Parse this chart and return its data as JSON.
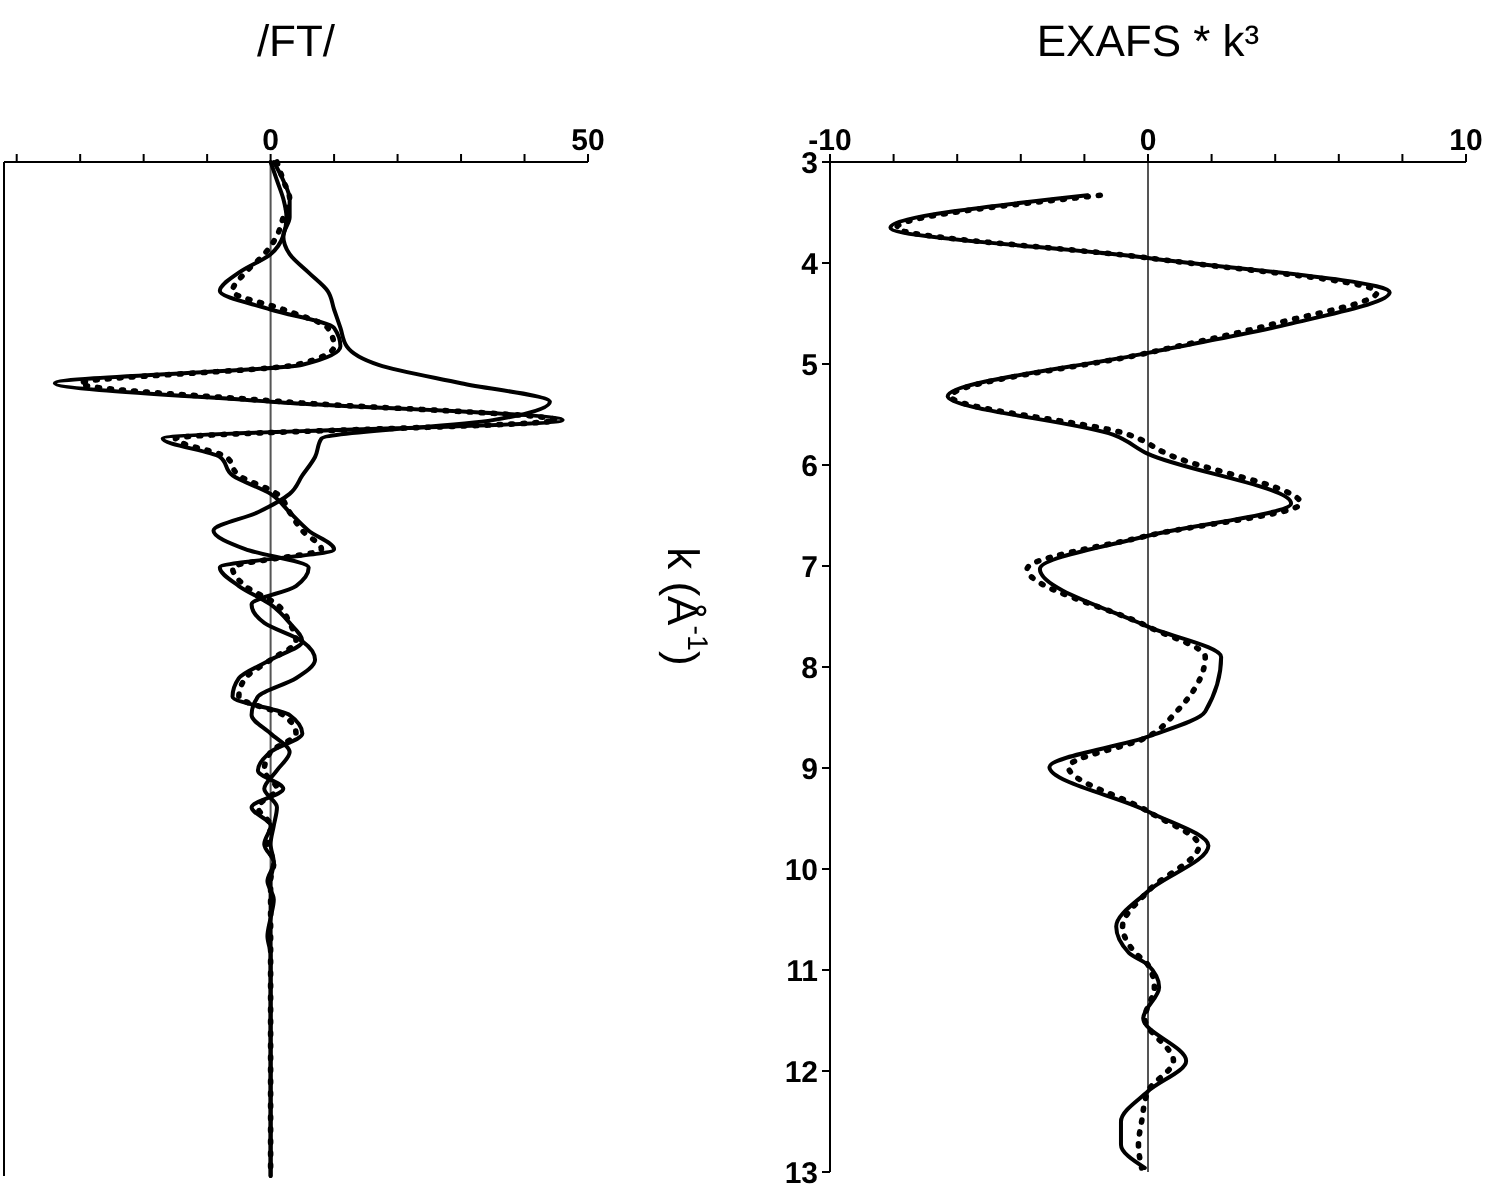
{
  "chart_data": [
    {
      "type": "line",
      "xlabel": "EXAFS * k³",
      "ylabel": "k (Å$^{-1}$)",
      "ylim": [
        13,
        3
      ],
      "yticks": [
        3,
        4,
        5,
        6,
        7,
        8,
        9,
        10,
        11,
        12,
        13
      ],
      "xlim": [
        -10,
        10
      ],
      "xticks": [
        -10,
        {
          "value": -8,
          "label": null
        },
        {
          "value": -6,
          "label": null
        },
        {
          "value": -4,
          "label": null
        },
        {
          "value": -2,
          "label": null
        },
        0,
        {
          "value": 2,
          "label": null
        },
        {
          "value": 4,
          "label": null
        },
        {
          "value": 6,
          "label": null
        },
        {
          "value": 8,
          "label": null
        },
        10
      ],
      "ref_lines": [
        {
          "axis": "x",
          "value": 0
        }
      ],
      "marker": "none",
      "series": [
        {
          "color": "#000000",
          "line_style": "solid",
          "values": [
            3.33,
            3.65,
            3.95,
            4.29,
            4.6,
            4.89,
            5.32,
            5.7,
            5.89,
            6.38,
            6.7,
            7.03,
            7.6,
            7.9,
            8.44,
            8.69,
            8.99,
            9.43,
            9.77,
            10.22,
            10.57,
            10.83,
            10.95,
            11.17,
            11.48,
            11.9,
            12.2,
            12.5,
            12.73,
            12.96
          ],
          "x": [
            -1.9,
            -8.1,
            0,
            7.6,
            4.5,
            0,
            -6.3,
            -1.1,
            0,
            4.5,
            0,
            -3.4,
            0,
            2.3,
            1.8,
            0,
            -3.1,
            0,
            1.9,
            0,
            -1.0,
            -0.6,
            0,
            0.35,
            -0.15,
            1.2,
            0,
            -0.85,
            -0.85,
            -0.1
          ]
        },
        {
          "color": "#000000",
          "line_style": "dotted",
          "values": [
            3.33,
            3.65,
            3.95,
            4.29,
            4.6,
            4.89,
            5.32,
            5.7,
            5.89,
            6.38,
            6.7,
            7.03,
            7.6,
            7.9,
            8.44,
            8.69,
            8.99,
            9.43,
            9.77,
            10.22,
            10.57,
            10.83,
            10.95,
            11.17,
            11.48,
            11.9,
            12.2,
            12.5,
            12.73,
            12.96
          ],
          "x": [
            -1.5,
            -7.9,
            0,
            7.2,
            4.0,
            0,
            -6.2,
            -0.6,
            0.6,
            4.8,
            0,
            -3.8,
            0,
            1.8,
            0.9,
            0,
            -2.5,
            0,
            1.6,
            0,
            -0.8,
            -0.4,
            0,
            0.2,
            -0.1,
            0.8,
            0,
            -0.2,
            -0.3,
            -0.2
          ]
        }
      ]
    },
    {
      "type": "line",
      "orientation": "horizontal",
      "xlabel": "/FT/",
      "tick_labels": "x",
      "categories": [
        null,
        null,
        null,
        null,
        null,
        null,
        null,
        null,
        null,
        null,
        null,
        null,
        null,
        null,
        null,
        null,
        null,
        null,
        null,
        null,
        null,
        null,
        null,
        null,
        null,
        null,
        null,
        null,
        null,
        null,
        null,
        null,
        null,
        null,
        null,
        null,
        null,
        null,
        null,
        null,
        null,
        null,
        null,
        null,
        null,
        null,
        null,
        null,
        null,
        null,
        null,
        null,
        null,
        null,
        null,
        null
      ],
      "xlim": [
        -42,
        50
      ],
      "xticks": [
        {
          "value": -40,
          "label": null
        },
        {
          "value": -30,
          "label": null
        },
        {
          "value": -20,
          "label": null
        },
        {
          "value": -10,
          "label": null
        },
        0,
        {
          "value": 10,
          "label": null
        },
        {
          "value": 20,
          "label": null
        },
        {
          "value": 30,
          "label": null
        },
        {
          "value": 40,
          "label": null
        },
        50
      ],
      "ref_lines": [
        {
          "axis": "x",
          "value": 0
        }
      ],
      "marker": "none",
      "series": [
        {
          "color": "#000000",
          "line_style": "solid",
          "values": [
            0,
            1,
            2,
            2.5,
            2,
            0,
            -5,
            -8,
            0,
            10,
            11,
            5,
            -34,
            0,
            46,
            -17,
            -8,
            -6,
            0,
            3,
            6,
            10,
            -8,
            -5,
            0,
            3,
            5,
            0,
            -5,
            -6,
            3,
            5,
            0,
            -2,
            2,
            -3,
            0,
            -1,
            0.5,
            -0.5,
            0.5,
            0,
            -0.5,
            0,
            0,
            0,
            0,
            0,
            0,
            0,
            0,
            0,
            0,
            0,
            0,
            0
          ]
        },
        {
          "color": "#000000",
          "line_style": "solid",
          "values": [
            0.5,
            2,
            3,
            3,
            2,
            3,
            6,
            9,
            10,
            11,
            12,
            17,
            30,
            44,
            35,
            8,
            7,
            5,
            3,
            -2,
            -9,
            -4,
            6,
            4,
            -3,
            -1,
            5,
            7,
            4,
            -2,
            -3,
            0,
            3,
            1,
            -1,
            1,
            0.5,
            0,
            0.5,
            0,
            0,
            0,
            0,
            0,
            0,
            0,
            0,
            0,
            0,
            0,
            0,
            0,
            0,
            0,
            0,
            0
          ]
        },
        {
          "color": "#000000",
          "line_style": "dotted",
          "values": [
            1,
            2,
            3,
            2,
            1,
            -1,
            -4,
            -6,
            2,
            9,
            10,
            4,
            -30,
            2,
            45,
            -15,
            -7,
            -5,
            1,
            3,
            5,
            8,
            -6,
            -4,
            1,
            3,
            4,
            0,
            -4,
            -5,
            2,
            4,
            0,
            -1,
            1,
            -2,
            0,
            -0.5,
            0.5,
            0,
            0,
            0,
            0,
            0,
            0,
            0,
            0,
            0,
            0,
            0,
            0,
            0,
            0,
            0,
            0,
            0
          ]
        }
      ]
    }
  ]
}
